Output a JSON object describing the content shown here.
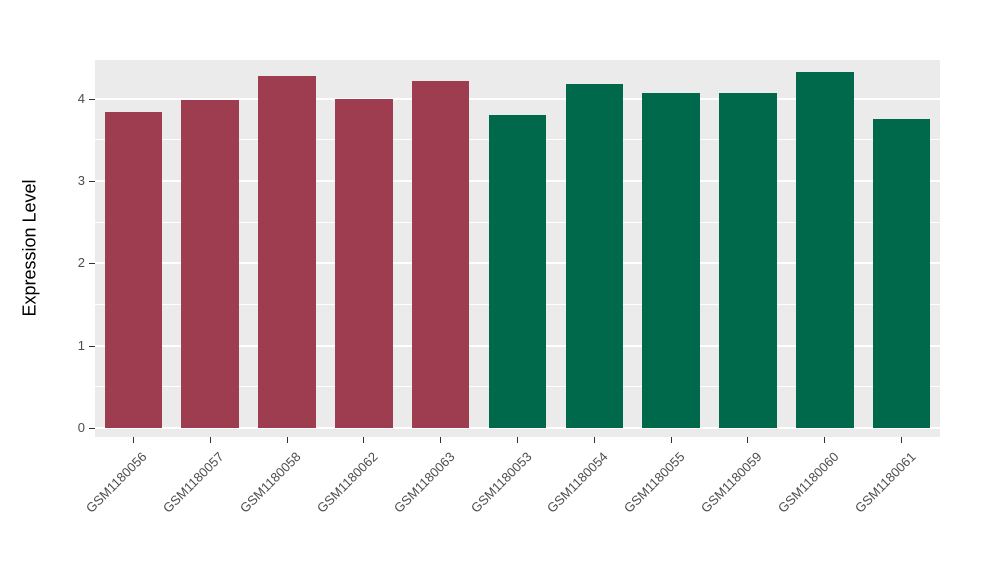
{
  "figure": {
    "background": "#FFFFFF",
    "panel_background": "#EBEBEB",
    "gridline_color": "#FFFFFF",
    "tick_color": "#333333",
    "axis_text_color": "#4D4D4D",
    "axis_title_color": "#000000"
  },
  "chart_data": {
    "type": "bar",
    "title": "",
    "xlabel": "",
    "ylabel": "Expression Level",
    "categories": [
      "GSM1180056",
      "GSM1180057",
      "GSM1180058",
      "GSM1180062",
      "GSM1180063",
      "GSM1180053",
      "GSM1180054",
      "GSM1180055",
      "GSM1180059",
      "GSM1180060",
      "GSM1180061"
    ],
    "values": [
      3.84,
      3.99,
      4.27,
      4.0,
      4.21,
      3.8,
      4.18,
      4.07,
      4.07,
      4.33,
      3.75
    ],
    "bar_colors": [
      "#9E3D4F",
      "#9E3D4F",
      "#9E3D4F",
      "#9E3D4F",
      "#9E3D4F",
      "#00694C",
      "#00694C",
      "#00694C",
      "#00694C",
      "#00694C",
      "#00694C"
    ],
    "groups": [
      {
        "color": "#9E3D4F",
        "categories": [
          "GSM1180056",
          "GSM1180057",
          "GSM1180058",
          "GSM1180062",
          "GSM1180063"
        ]
      },
      {
        "color": "#00694C",
        "categories": [
          "GSM1180053",
          "GSM1180054",
          "GSM1180055",
          "GSM1180059",
          "GSM1180060",
          "GSM1180061"
        ]
      }
    ],
    "y_ticks": [
      0,
      1,
      2,
      3,
      4
    ],
    "minor_gridlines": [
      0.5,
      1.5,
      2.5,
      3.5
    ],
    "ylim": [
      0,
      4.47
    ],
    "grid": true,
    "legend": "none"
  }
}
